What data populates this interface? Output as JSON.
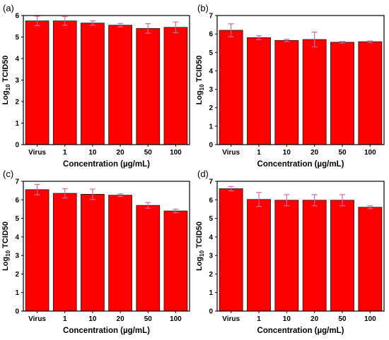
{
  "figure": {
    "panels": [
      {
        "id": "a",
        "label": "(a)"
      },
      {
        "id": "b",
        "label": "(b)"
      },
      {
        "id": "c",
        "label": "(c)"
      },
      {
        "id": "d",
        "label": "(d)"
      }
    ]
  },
  "colors": {
    "bar": "#ff0000",
    "bar_edge": "#1a1a1a",
    "error_bar": "#d46aa0",
    "axis": "#000000"
  },
  "chart_data": [
    {
      "panel": "(a)",
      "type": "bar",
      "categories": [
        "Virus",
        "1",
        "10",
        "20",
        "50",
        "100"
      ],
      "values": [
        5.75,
        5.75,
        5.65,
        5.55,
        5.4,
        5.45
      ],
      "errors": [
        0.22,
        0.2,
        0.1,
        0.08,
        0.22,
        0.25
      ],
      "xlabel": "Concentration (µg/mL)",
      "ylabel_parts": [
        "Log",
        "10",
        " TCID50"
      ],
      "ylim": [
        0,
        6
      ],
      "yticks": [
        0,
        1,
        2,
        3,
        4,
        5,
        6
      ],
      "grid": false
    },
    {
      "panel": "(b)",
      "type": "bar",
      "categories": [
        "Virus",
        "1",
        "10",
        "20",
        "50",
        "100"
      ],
      "values": [
        6.2,
        5.8,
        5.65,
        5.7,
        5.55,
        5.58
      ],
      "errors": [
        0.35,
        0.1,
        0.06,
        0.4,
        0.04,
        0.04
      ],
      "xlabel": "Concentration (µg/mL)",
      "ylabel_parts": [
        "Log",
        "10",
        " TCID50"
      ],
      "ylim": [
        0,
        7
      ],
      "yticks": [
        0,
        1,
        2,
        3,
        4,
        5,
        6,
        7
      ],
      "grid": false
    },
    {
      "panel": "(c)",
      "type": "bar",
      "categories": [
        "Virus",
        "1",
        "10",
        "20",
        "50",
        "100"
      ],
      "values": [
        6.55,
        6.35,
        6.3,
        6.25,
        5.7,
        5.4
      ],
      "errors": [
        0.28,
        0.25,
        0.28,
        0.07,
        0.15,
        0.1
      ],
      "xlabel": "Concentration (µg/mL)",
      "ylabel_parts": [
        "Log",
        "10",
        " TCID50"
      ],
      "ylim": [
        0,
        7
      ],
      "yticks": [
        0,
        1,
        2,
        3,
        4,
        5,
        6,
        7
      ],
      "grid": false
    },
    {
      "panel": "(d)",
      "type": "bar",
      "categories": [
        "Virus",
        "1",
        "10",
        "20",
        "50",
        "100"
      ],
      "values": [
        6.6,
        6.02,
        5.98,
        5.98,
        5.98,
        5.6
      ],
      "errors": [
        0.12,
        0.38,
        0.3,
        0.3,
        0.3,
        0.08
      ],
      "xlabel": "Concentration (µg/mL)",
      "ylabel_parts": [
        "Log",
        "10",
        " TCID50"
      ],
      "ylim": [
        0,
        7
      ],
      "yticks": [
        0,
        1,
        2,
        3,
        4,
        5,
        6,
        7
      ],
      "grid": false
    }
  ]
}
